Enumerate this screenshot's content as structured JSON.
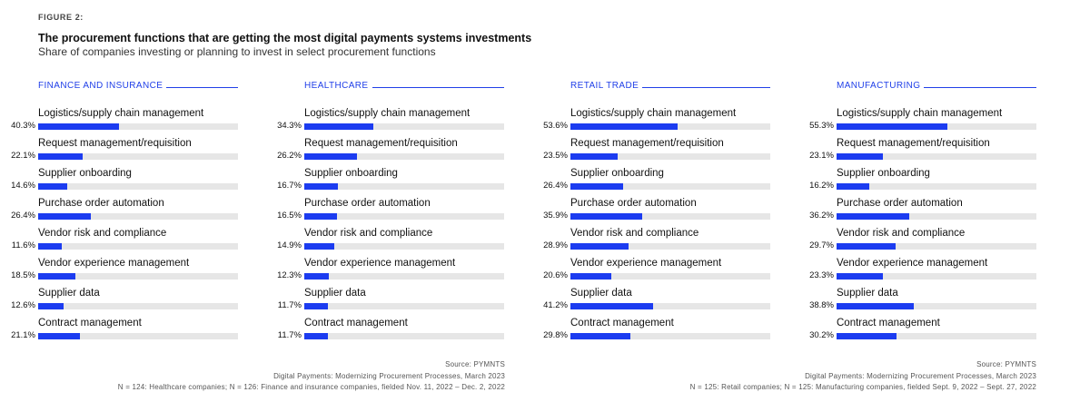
{
  "figure_label": "FIGURE 2:",
  "title": "The procurement functions that are getting the most digital payments systems investments",
  "subtitle": "Share of companies investing or planning to invest in select procurement functions",
  "colors": {
    "bar": "#1c3cf0",
    "track": "#e6e6e6",
    "header": "#2140e8"
  },
  "chart_data": {
    "type": "bar",
    "orientation": "horizontal",
    "unit": "%",
    "xlim": [
      0,
      100
    ],
    "categories": [
      "Logistics/supply chain management",
      "Request management/requisition",
      "Supplier onboarding",
      "Purchase order automation",
      "Vendor risk and compliance",
      "Vendor experience management",
      "Supplier data",
      "Contract management"
    ],
    "series": [
      {
        "name": "FINANCE AND INSURANCE",
        "values": [
          40.3,
          22.1,
          14.6,
          26.4,
          11.6,
          18.5,
          12.6,
          21.1
        ],
        "labels": [
          "40.3%",
          "22.1%",
          "14.6%",
          "26.4%",
          "11.6%",
          "18.5%",
          "12.6%",
          "21.1%"
        ]
      },
      {
        "name": "HEALTHCARE",
        "values": [
          34.3,
          26.2,
          16.7,
          16.5,
          14.9,
          12.3,
          11.7,
          11.7
        ],
        "labels": [
          "34.3%",
          "26.2%",
          "16.7%",
          "16.5%",
          "14.9%",
          "12.3%",
          "11.7%",
          "11.7%"
        ]
      },
      {
        "name": "RETAIL TRADE",
        "values": [
          53.6,
          23.5,
          26.4,
          35.9,
          28.9,
          20.6,
          41.2,
          29.8
        ],
        "labels": [
          "53.6%",
          "23.5%",
          "26.4%",
          "35.9%",
          "28.9%",
          "20.6%",
          "41.2%",
          "29.8%"
        ]
      },
      {
        "name": "MANUFACTURING",
        "values": [
          55.3,
          23.1,
          16.2,
          36.2,
          29.7,
          23.3,
          38.8,
          30.2
        ],
        "labels": [
          "55.3%",
          "23.1%",
          "16.2%",
          "36.2%",
          "29.7%",
          "23.3%",
          "38.8%",
          "30.2%"
        ]
      }
    ]
  },
  "notes": [
    {
      "source": "Source: PYMNTS",
      "report": "Digital Payments: Modernizing Procurement Processes, March 2023",
      "sample": "N = 124: Healthcare companies; N = 126: Finance and insurance companies, fielded Nov. 11, 2022 – Dec. 2, 2022"
    },
    {
      "source": "Source: PYMNTS",
      "report": "Digital Payments: Modernizing Procurement Processes, March 2023",
      "sample": "N = 125: Retail companies; N = 125: Manufacturing companies, fielded Sept. 9, 2022 – Sept. 27, 2022"
    }
  ]
}
